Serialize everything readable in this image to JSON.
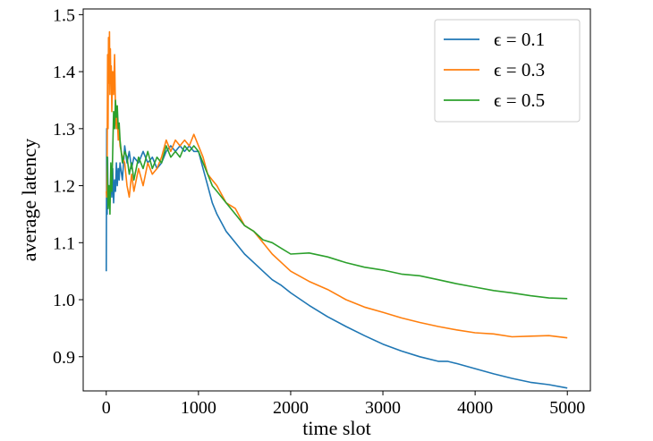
{
  "chart_data": {
    "type": "line",
    "title": "",
    "xlabel": "time slot",
    "ylabel": "average latency",
    "xlim": [
      -250,
      5250
    ],
    "ylim": [
      0.84,
      1.51
    ],
    "xticks": [
      0,
      1000,
      2000,
      3000,
      4000,
      5000
    ],
    "xtick_labels": [
      "0",
      "1000",
      "2000",
      "3000",
      "4000",
      "5000"
    ],
    "yticks": [
      0.9,
      1.0,
      1.1,
      1.2,
      1.3,
      1.4,
      1.5
    ],
    "ytick_labels": [
      "0.9",
      "1.0",
      "1.1",
      "1.2",
      "1.3",
      "1.4",
      "1.5"
    ],
    "grid": false,
    "legend_position": "top-right",
    "series": [
      {
        "name": "ϵ = 0.1",
        "color": "#1f77b4",
        "x": [
          0,
          5,
          10,
          15,
          20,
          30,
          40,
          50,
          60,
          70,
          80,
          90,
          100,
          110,
          120,
          130,
          140,
          150,
          175,
          200,
          225,
          250,
          275,
          300,
          350,
          400,
          450,
          500,
          550,
          600,
          650,
          700,
          750,
          800,
          850,
          900,
          950,
          1000,
          1050,
          1100,
          1150,
          1200,
          1300,
          1400,
          1500,
          1600,
          1700,
          1800,
          1900,
          2000,
          2200,
          2400,
          2600,
          2800,
          3000,
          3200,
          3400,
          3600,
          3700,
          3800,
          4000,
          4200,
          4400,
          4600,
          4800,
          5000
        ],
        "y": [
          1.05,
          1.3,
          1.15,
          1.25,
          1.16,
          1.2,
          1.17,
          1.22,
          1.18,
          1.23,
          1.17,
          1.21,
          1.19,
          1.24,
          1.2,
          1.23,
          1.21,
          1.24,
          1.21,
          1.27,
          1.24,
          1.26,
          1.23,
          1.25,
          1.24,
          1.26,
          1.24,
          1.25,
          1.23,
          1.24,
          1.26,
          1.27,
          1.26,
          1.27,
          1.26,
          1.27,
          1.26,
          1.26,
          1.23,
          1.2,
          1.17,
          1.15,
          1.12,
          1.1,
          1.08,
          1.065,
          1.05,
          1.035,
          1.025,
          1.012,
          0.99,
          0.97,
          0.953,
          0.937,
          0.922,
          0.91,
          0.9,
          0.892,
          0.892,
          0.888,
          0.879,
          0.87,
          0.862,
          0.855,
          0.851,
          0.845
        ]
      },
      {
        "name": "ϵ = 0.3",
        "color": "#ff7f0e",
        "x": [
          0,
          5,
          10,
          15,
          20,
          25,
          30,
          35,
          40,
          45,
          50,
          55,
          60,
          70,
          80,
          90,
          100,
          110,
          120,
          130,
          140,
          150,
          175,
          200,
          225,
          250,
          275,
          300,
          350,
          400,
          450,
          500,
          550,
          600,
          650,
          700,
          750,
          800,
          850,
          900,
          950,
          1000,
          1050,
          1100,
          1150,
          1200,
          1300,
          1400,
          1500,
          1600,
          1700,
          1800,
          1900,
          2000,
          2200,
          2400,
          2600,
          2800,
          3000,
          3200,
          3400,
          3600,
          3800,
          4000,
          4200,
          4400,
          4600,
          4800,
          5000
        ],
        "y": [
          1.19,
          1.18,
          1.25,
          1.43,
          1.3,
          1.46,
          1.38,
          1.47,
          1.36,
          1.44,
          1.38,
          1.41,
          1.33,
          1.4,
          1.36,
          1.43,
          1.33,
          1.3,
          1.32,
          1.28,
          1.3,
          1.27,
          1.25,
          1.24,
          1.2,
          1.18,
          1.22,
          1.19,
          1.23,
          1.2,
          1.24,
          1.22,
          1.23,
          1.25,
          1.28,
          1.26,
          1.28,
          1.27,
          1.28,
          1.27,
          1.29,
          1.27,
          1.25,
          1.22,
          1.21,
          1.2,
          1.17,
          1.16,
          1.13,
          1.12,
          1.1,
          1.08,
          1.065,
          1.05,
          1.032,
          1.018,
          1.0,
          0.987,
          0.978,
          0.968,
          0.96,
          0.953,
          0.947,
          0.942,
          0.94,
          0.935,
          0.936,
          0.937,
          0.933
        ]
      },
      {
        "name": "ϵ = 0.5",
        "color": "#2ca02c",
        "x": [
          0,
          10,
          20,
          30,
          40,
          50,
          60,
          70,
          80,
          90,
          100,
          110,
          120,
          130,
          140,
          150,
          175,
          200,
          225,
          250,
          275,
          300,
          350,
          400,
          450,
          500,
          550,
          600,
          650,
          700,
          750,
          800,
          850,
          900,
          950,
          1000,
          1050,
          1100,
          1150,
          1200,
          1300,
          1400,
          1500,
          1600,
          1700,
          1800,
          1900,
          2000,
          2200,
          2400,
          2600,
          2800,
          3000,
          3200,
          3400,
          3600,
          3800,
          4000,
          4200,
          4400,
          4600,
          4800,
          5000
        ],
        "y": [
          1.25,
          1.25,
          1.16,
          1.2,
          1.15,
          1.24,
          1.19,
          1.26,
          1.33,
          1.3,
          1.35,
          1.32,
          1.34,
          1.3,
          1.31,
          1.28,
          1.24,
          1.26,
          1.25,
          1.22,
          1.24,
          1.21,
          1.25,
          1.23,
          1.26,
          1.23,
          1.25,
          1.24,
          1.27,
          1.25,
          1.26,
          1.25,
          1.27,
          1.26,
          1.27,
          1.26,
          1.24,
          1.22,
          1.2,
          1.19,
          1.17,
          1.15,
          1.13,
          1.12,
          1.105,
          1.1,
          1.09,
          1.08,
          1.082,
          1.075,
          1.065,
          1.057,
          1.052,
          1.045,
          1.042,
          1.035,
          1.028,
          1.022,
          1.016,
          1.012,
          1.007,
          1.003,
          1.002
        ]
      }
    ]
  }
}
